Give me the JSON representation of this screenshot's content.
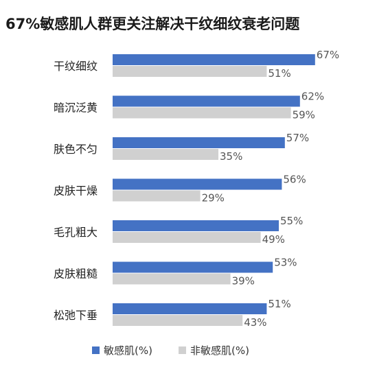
{
  "chart_data": {
    "type": "bar",
    "orientation": "horizontal",
    "title": "67%敏感肌人群更关注解决干纹细纹衰老问题",
    "categories": [
      "干纹细纹",
      "暗沉泛黄",
      "肤色不匀",
      "皮肤干燥",
      "毛孔粗大",
      "皮肤粗糙",
      "松弛下垂"
    ],
    "series": [
      {
        "name": "敏感肌(%)",
        "color": "#4472C4",
        "values": [
          67,
          62,
          57,
          56,
          55,
          53,
          51
        ],
        "labels": [
          "67%",
          "62%",
          "57%",
          "56%",
          "55%",
          "53%",
          "51%"
        ]
      },
      {
        "name": "非敏感肌(%)",
        "color": "#D0D0D0",
        "values": [
          51,
          59,
          35,
          29,
          49,
          39,
          43
        ],
        "labels": [
          "51%",
          "59%",
          "35%",
          "29%",
          "49%",
          "39%",
          "43%"
        ]
      }
    ],
    "xlim": [
      0,
      100
    ],
    "grid": false,
    "legend_position": "bottom-left"
  }
}
